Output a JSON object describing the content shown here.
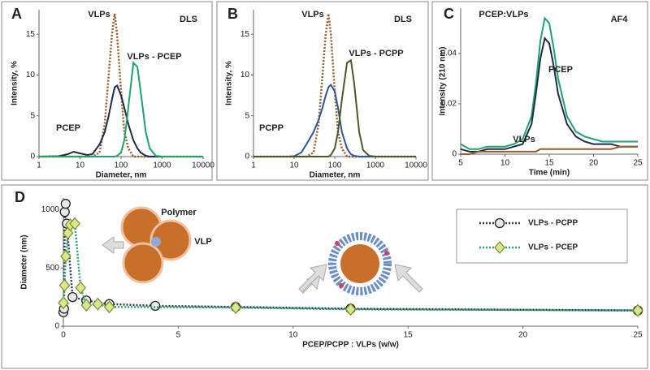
{
  "chart_data": [
    {
      "type": "line",
      "panel_label": "A",
      "annotations": [
        "DLS"
      ],
      "x_label": "Diameter, nm",
      "y_label": "Intensity, %",
      "xscale": "log",
      "x": [
        1,
        3,
        5,
        7,
        10,
        15,
        20,
        30,
        40,
        50,
        60,
        70,
        80,
        100,
        120,
        150,
        200,
        250,
        300,
        400,
        500,
        700,
        1000,
        10000
      ],
      "xlim": [
        1,
        10000
      ],
      "xticks": [
        1,
        10,
        100,
        1000,
        10000
      ],
      "ylim": [
        0,
        18
      ],
      "yticks": [
        0,
        5,
        10,
        15
      ],
      "series": [
        {
          "name": "VLPs",
          "color": "#9a5a2a",
          "dash": "dotted",
          "values": [
            0,
            0,
            0,
            0,
            0,
            0,
            0,
            0.5,
            4,
            10,
            15,
            17.5,
            15,
            8,
            3,
            1,
            0,
            0,
            0,
            0,
            0,
            0,
            0,
            0
          ]
        },
        {
          "name": "PCEP",
          "color": "#1f2a4d",
          "dash": "solid",
          "values": [
            0,
            0.05,
            0.3,
            0.6,
            0.4,
            0.2,
            0.3,
            1.5,
            3,
            5,
            7,
            8.5,
            8.7,
            7.5,
            6,
            4,
            2,
            1,
            0.5,
            0.1,
            0,
            0,
            0,
            0
          ]
        },
        {
          "name": "VLPs - PCEP",
          "color": "#1fa36b",
          "dash": "solid",
          "values": [
            0,
            0,
            0,
            0,
            0,
            0,
            0,
            0,
            0,
            0,
            0,
            0,
            0.1,
            0.5,
            2,
            6,
            11.5,
            11,
            8,
            3,
            1,
            0.1,
            0,
            0
          ]
        }
      ]
    },
    {
      "type": "line",
      "panel_label": "B",
      "annotations": [
        "DLS"
      ],
      "x_label": "Diameter, nm",
      "y_label": "Intensity, %",
      "xscale": "log",
      "x": [
        1,
        3,
        5,
        7,
        10,
        15,
        20,
        30,
        40,
        50,
        60,
        70,
        80,
        100,
        120,
        150,
        200,
        250,
        300,
        400,
        500,
        700,
        1000,
        10000
      ],
      "xlim": [
        1,
        10000
      ],
      "xticks": [
        1,
        10,
        100,
        1000,
        10000
      ],
      "ylim": [
        0,
        18
      ],
      "yticks": [
        0,
        5,
        10,
        15
      ],
      "series": [
        {
          "name": "VLPs",
          "color": "#9a5a2a",
          "dash": "dotted",
          "values": [
            0,
            0,
            0,
            0,
            0,
            0,
            0,
            0.5,
            4,
            10,
            15,
            17.5,
            15,
            8,
            3,
            1,
            0,
            0,
            0,
            0,
            0,
            0,
            0,
            0
          ]
        },
        {
          "name": "PCPP",
          "color": "#2f5597",
          "dash": "solid",
          "values": [
            0,
            0,
            0,
            0,
            0.05,
            0.5,
            1.5,
            3,
            4.5,
            6,
            7.5,
            8.5,
            8.8,
            8,
            6,
            3,
            1,
            0.3,
            0.1,
            0,
            0,
            0,
            0,
            0
          ]
        },
        {
          "name": "VLPs - PCPP",
          "color": "#4a5a2a",
          "dash": "solid",
          "values": [
            0,
            0,
            0,
            0,
            0,
            0,
            0,
            0,
            0,
            0,
            0,
            0,
            0.2,
            1,
            3,
            7,
            11.5,
            11.8,
            9,
            3,
            0.8,
            0.1,
            0,
            0
          ]
        }
      ]
    },
    {
      "type": "line",
      "panel_label": "C",
      "annotations": [
        "AF4"
      ],
      "x_label": "Time (min)",
      "y_label": "Intensity (210 nm)",
      "xscale": "linear",
      "x": [
        5,
        6,
        7,
        8,
        9,
        10,
        11,
        12,
        13,
        13.5,
        14,
        14.5,
        15,
        15.5,
        16,
        17,
        18,
        19,
        20,
        21,
        22,
        23,
        24,
        25
      ],
      "xlim": [
        5,
        25
      ],
      "xticks": [
        5,
        10,
        15,
        20,
        25
      ],
      "ylim": [
        0,
        0.058
      ],
      "yticks": [
        0,
        0.02,
        0.04
      ],
      "series": [
        {
          "name": "PCEP:VLPs",
          "color": "#1fa36b",
          "dash": "solid",
          "values": [
            0.004,
            0.002,
            0.002,
            0.003,
            0.003,
            0.003,
            0.004,
            0.006,
            0.015,
            0.028,
            0.045,
            0.054,
            0.052,
            0.042,
            0.03,
            0.015,
            0.009,
            0.007,
            0.006,
            0.005,
            0.005,
            0.005,
            0.005,
            0.005
          ]
        },
        {
          "name": "PCEP",
          "color": "#1f2a4d",
          "dash": "solid",
          "values": [
            0.002,
            0.001,
            0.001,
            0.002,
            0.002,
            0.002,
            0.003,
            0.004,
            0.012,
            0.024,
            0.038,
            0.046,
            0.044,
            0.035,
            0.024,
            0.012,
            0.007,
            0.005,
            0.004,
            0.004,
            0.004,
            0.003,
            0.003,
            0.003
          ]
        },
        {
          "name": "VLPs",
          "color": "#9a5a2a",
          "dash": "solid",
          "values": [
            0,
            0,
            0.001,
            0.001,
            0.001,
            0.001,
            0.001,
            0.001,
            0.001,
            0.001,
            0.002,
            0.002,
            0.002,
            0.002,
            0.002,
            0.002,
            0.002,
            0.002,
            0.002,
            0.002,
            0.002,
            0.003,
            0.003,
            0.003
          ]
        }
      ]
    },
    {
      "type": "line",
      "panel_label": "D",
      "annotations": [
        "Polymer",
        "VLP"
      ],
      "x_label": "PCEP/PCPP : VLPs (w/w)",
      "y_label": "Diameter (nm)",
      "xscale": "linear",
      "legend": "upper right",
      "xlim": [
        0,
        25
      ],
      "xticks": [
        0,
        5,
        10,
        15,
        20,
        25
      ],
      "ylim": [
        0,
        1100
      ],
      "yticks": [
        0,
        500,
        1000
      ],
      "series": [
        {
          "name": "VLPs - PCPP",
          "color": "#2b3a55",
          "dash": "dotted",
          "marker": "circle",
          "x": [
            0,
            0.03,
            0.06,
            0.1,
            0.15,
            0.4,
            1,
            2,
            4,
            7.5,
            12.5,
            25
          ],
          "values": [
            120,
            150,
            980,
            1050,
            880,
            250,
            220,
            190,
            175,
            165,
            150,
            135
          ]
        },
        {
          "name": "VLPs - PCEP",
          "color": "#2aa36b",
          "dash": "dotted",
          "marker": "diamond",
          "x": [
            0,
            0.05,
            0.1,
            0.2,
            0.3,
            0.5,
            0.75,
            1,
            1.5,
            2,
            7.5,
            12.5,
            25
          ],
          "values": [
            200,
            350,
            600,
            800,
            870,
            880,
            330,
            180,
            190,
            165,
            160,
            145,
            135
          ]
        }
      ]
    }
  ]
}
